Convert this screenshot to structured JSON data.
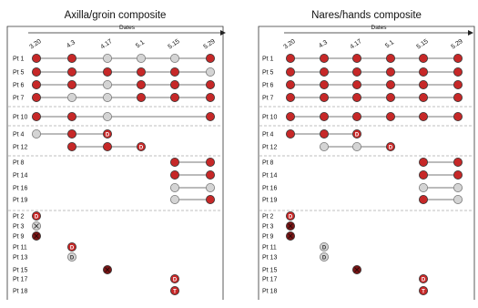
{
  "figure": {
    "dates_label": "Dates",
    "date_ticks": [
      "3.20",
      "4.3",
      "4.17",
      "5.1",
      "5.15",
      "5.29"
    ],
    "colors": {
      "red": "#c62828",
      "red_dark": "#7a1616",
      "gray": "#d4d4d4",
      "gray_border": "#777777",
      "line": "#777777",
      "divider": "#aaaaaa"
    },
    "panels": [
      {
        "title": "Axilla/groin composite",
        "rows": [
          {
            "label": "Pt 1",
            "group": 0,
            "marks": [
              "R",
              "R",
              "G",
              "G",
              "G",
              "R"
            ],
            "line": [
              0,
              5
            ]
          },
          {
            "label": "Pt 5",
            "group": 0,
            "marks": [
              "R",
              "R",
              "R",
              "R",
              "R",
              "G"
            ],
            "line": [
              0,
              5
            ]
          },
          {
            "label": "Pt 6",
            "group": 0,
            "marks": [
              "R",
              "R",
              "G",
              "R",
              "R",
              "R"
            ],
            "line": [
              0,
              5
            ]
          },
          {
            "label": "Pt 7",
            "group": 0,
            "marks": [
              "R",
              "G",
              "G",
              "R",
              "R",
              "R"
            ],
            "line": [
              0,
              5
            ]
          },
          {
            "label": "Pt 10",
            "group": 1,
            "marks": [
              "R",
              "R",
              "G",
              "",
              "",
              "R"
            ],
            "line": [
              0,
              5
            ]
          },
          {
            "label": "Pt 4",
            "group": 2,
            "marks": [
              "G",
              "R",
              "D",
              "",
              "",
              ""
            ],
            "line": [
              0,
              2
            ]
          },
          {
            "label": "Pt 12",
            "group": 2,
            "marks": [
              "",
              "R",
              "R",
              "D",
              "",
              ""
            ],
            "line": [
              1,
              3
            ]
          },
          {
            "label": "Pt 8",
            "group": 3,
            "marks": [
              "",
              "",
              "",
              "",
              "R",
              "R"
            ],
            "line": [
              4,
              5
            ]
          },
          {
            "label": "Pt 14",
            "group": 3,
            "marks": [
              "",
              "",
              "",
              "",
              "R",
              "R"
            ],
            "line": [
              4,
              5
            ]
          },
          {
            "label": "Pt 16",
            "group": 3,
            "marks": [
              "",
              "",
              "",
              "",
              "G",
              "G"
            ],
            "line": [
              4,
              5
            ]
          },
          {
            "label": "Pt 19",
            "group": 3,
            "marks": [
              "",
              "",
              "",
              "",
              "G",
              "R"
            ],
            "line": [
              4,
              5
            ]
          },
          {
            "label": "Pt 2",
            "group": 4,
            "marks": [
              "D",
              "",
              "",
              "",
              "",
              ""
            ],
            "line": null
          },
          {
            "label": "Pt 3",
            "group": 4,
            "marks": [
              "GX",
              "",
              "",
              "",
              "",
              ""
            ],
            "line": null
          },
          {
            "label": "Pt 9",
            "group": 4,
            "marks": [
              "X",
              "",
              "",
              "",
              "",
              ""
            ],
            "line": null
          },
          {
            "label": "Pt 11",
            "group": 4,
            "marks": [
              "",
              "D",
              "",
              "",
              "",
              ""
            ],
            "line": null
          },
          {
            "label": "Pt 13",
            "group": 4,
            "marks": [
              "",
              "GD",
              "",
              "",
              "",
              ""
            ],
            "line": null
          },
          {
            "label": "Pt 15",
            "group": 4,
            "marks": [
              "",
              "",
              "X",
              "",
              "",
              ""
            ],
            "line": null
          },
          {
            "label": "Pt 17",
            "group": 4,
            "marks": [
              "",
              "",
              "",
              "",
              "D",
              ""
            ],
            "line": null
          },
          {
            "label": "Pt 18",
            "group": 4,
            "marks": [
              "",
              "",
              "",
              "",
              "T",
              ""
            ],
            "line": null
          }
        ]
      },
      {
        "title": "Nares/hands composite",
        "rows": [
          {
            "label": "Pt 1",
            "group": 0,
            "marks": [
              "R",
              "R",
              "R",
              "R",
              "R",
              "R"
            ],
            "line": [
              0,
              5
            ]
          },
          {
            "label": "Pt 5",
            "group": 0,
            "marks": [
              "R",
              "R",
              "R",
              "R",
              "R",
              "R"
            ],
            "line": [
              0,
              5
            ]
          },
          {
            "label": "Pt 6",
            "group": 0,
            "marks": [
              "R",
              "R",
              "R",
              "R",
              "R",
              "R"
            ],
            "line": [
              0,
              5
            ]
          },
          {
            "label": "Pt 7",
            "group": 0,
            "marks": [
              "R",
              "R",
              "R",
              "R",
              "R",
              "R"
            ],
            "line": [
              0,
              5
            ]
          },
          {
            "label": "Pt 10",
            "group": 1,
            "marks": [
              "R",
              "R",
              "R",
              "R",
              "R",
              "R"
            ],
            "line": [
              0,
              5
            ]
          },
          {
            "label": "Pt 4",
            "group": 2,
            "marks": [
              "R",
              "R",
              "D",
              "",
              "",
              ""
            ],
            "line": [
              0,
              2
            ]
          },
          {
            "label": "Pt 12",
            "group": 2,
            "marks": [
              "",
              "G",
              "G",
              "D",
              "",
              ""
            ],
            "line": [
              1,
              3
            ]
          },
          {
            "label": "Pt 8",
            "group": 3,
            "marks": [
              "",
              "",
              "",
              "",
              "R",
              "R"
            ],
            "line": [
              4,
              5
            ]
          },
          {
            "label": "Pt 14",
            "group": 3,
            "marks": [
              "",
              "",
              "",
              "",
              "R",
              "R"
            ],
            "line": [
              4,
              5
            ]
          },
          {
            "label": "Pt 16",
            "group": 3,
            "marks": [
              "",
              "",
              "",
              "",
              "G",
              "G"
            ],
            "line": [
              4,
              5
            ]
          },
          {
            "label": "Pt 19",
            "group": 3,
            "marks": [
              "",
              "",
              "",
              "",
              "R",
              "G"
            ],
            "line": [
              4,
              5
            ]
          },
          {
            "label": "Pt 2",
            "group": 4,
            "marks": [
              "D",
              "",
              "",
              "",
              "",
              ""
            ],
            "line": null
          },
          {
            "label": "Pt 3",
            "group": 4,
            "marks": [
              "X",
              "",
              "",
              "",
              "",
              ""
            ],
            "line": null
          },
          {
            "label": "Pt 9",
            "group": 4,
            "marks": [
              "X",
              "",
              "",
              "",
              "",
              ""
            ],
            "line": null
          },
          {
            "label": "Pt 11",
            "group": 4,
            "marks": [
              "",
              "GD",
              "",
              "",
              "",
              ""
            ],
            "line": null
          },
          {
            "label": "Pt 13",
            "group": 4,
            "marks": [
              "",
              "GD",
              "",
              "",
              "",
              ""
            ],
            "line": null
          },
          {
            "label": "Pt 15",
            "group": 4,
            "marks": [
              "",
              "",
              "X",
              "",
              "",
              ""
            ],
            "line": null
          },
          {
            "label": "Pt 17",
            "group": 4,
            "marks": [
              "",
              "",
              "",
              "",
              "D",
              ""
            ],
            "line": null
          },
          {
            "label": "Pt 18",
            "group": 4,
            "marks": [
              "",
              "",
              "",
              "",
              "T",
              ""
            ],
            "line": null
          }
        ]
      }
    ]
  }
}
